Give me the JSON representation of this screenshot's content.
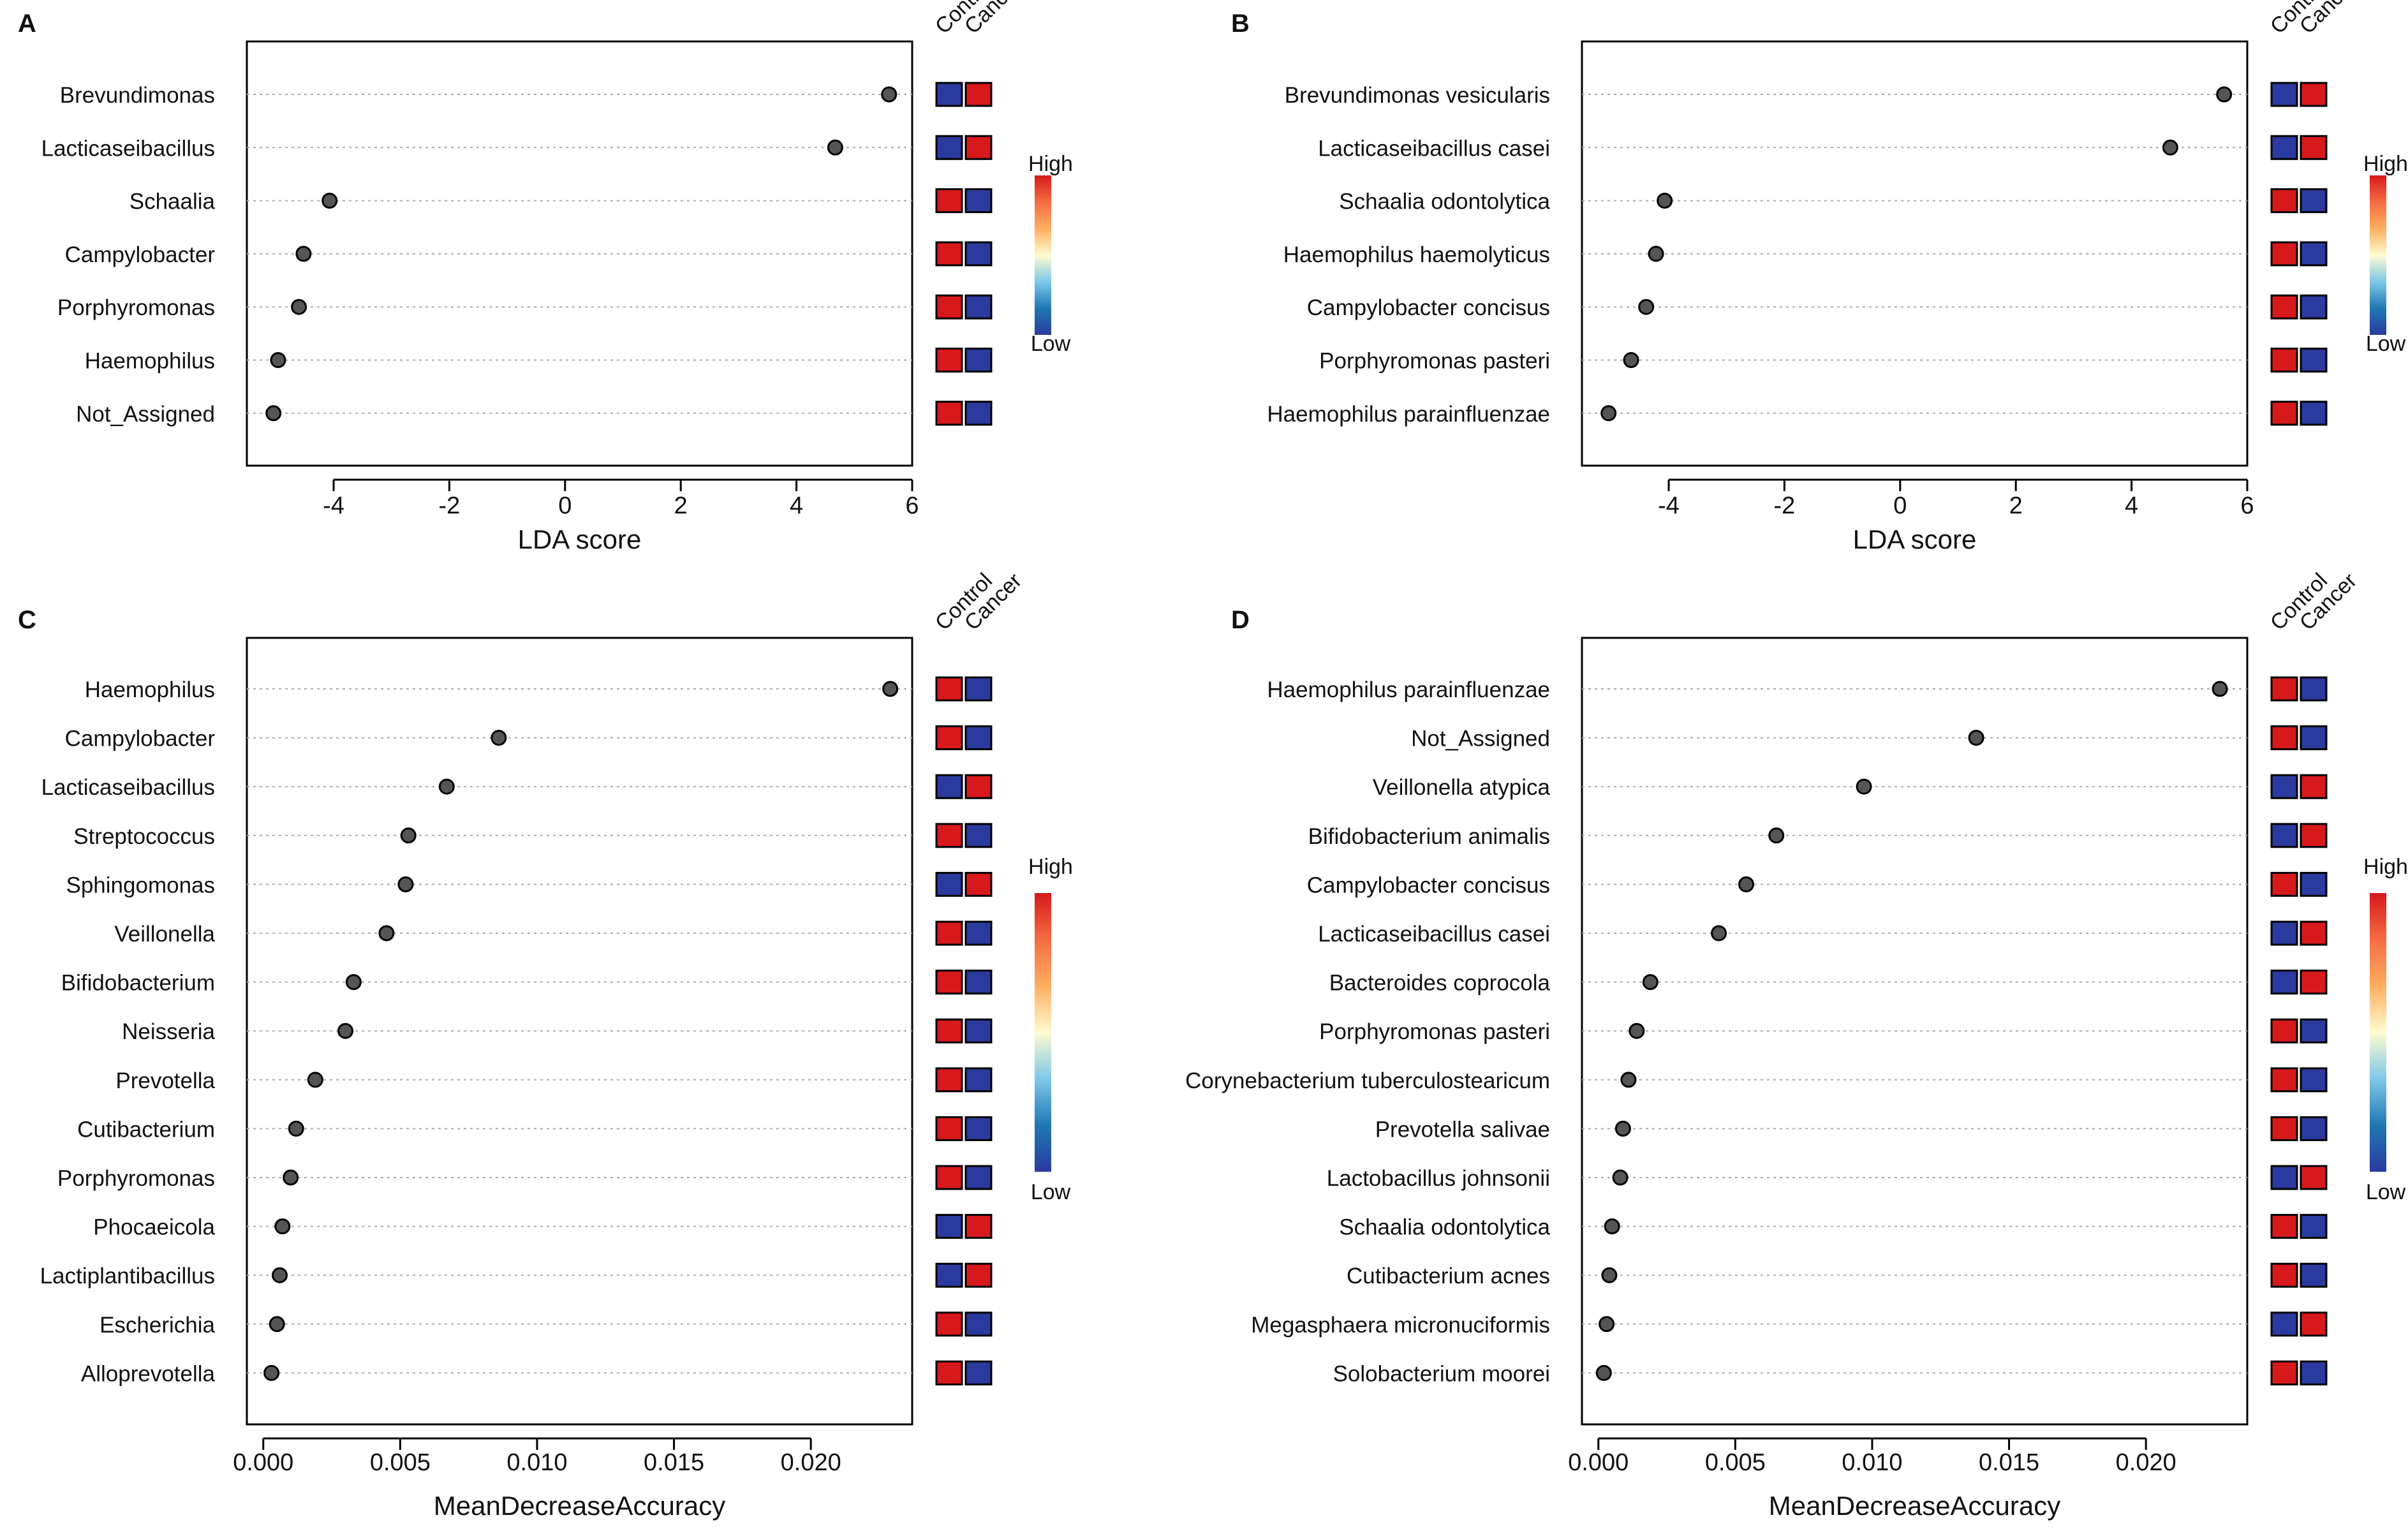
{
  "figure": {
    "legend_col_labels": [
      "Control",
      "Cancer"
    ],
    "legend_high": "High",
    "legend_low": "Low",
    "colors": {
      "high": "#d7191c",
      "low": "#2b3a9e",
      "point": "#555555",
      "box": "#000000",
      "grid": "#aaaaaa",
      "gradient": [
        "#2b3a9e",
        "#1f78b4",
        "#7fc8e8",
        "#fffbd0",
        "#fdae61",
        "#f46d43",
        "#d7191c"
      ]
    }
  },
  "chart_data": [
    {
      "panel": "A",
      "type": "scatter",
      "xlabel": "LDA score",
      "xlim": [
        -5.5,
        6
      ],
      "xticks": [
        -4,
        -2,
        0,
        2,
        4,
        6
      ],
      "xtick_labels": [
        "-4",
        "-2",
        "0",
        "2",
        "4",
        "6"
      ],
      "categories": [
        "Brevundimonas",
        "Lacticaseibacillus",
        "Schaalia",
        "Campylobacter",
        "Porphyromonas",
        "Haemophilus",
        "Not_Assigned"
      ],
      "values": [
        5.6,
        4.67,
        -4.07,
        -4.52,
        -4.6,
        -4.96,
        -5.04
      ],
      "heatmap": [
        [
          "low",
          "high"
        ],
        [
          "low",
          "high"
        ],
        [
          "high",
          "low"
        ],
        [
          "high",
          "low"
        ],
        [
          "high",
          "low"
        ],
        [
          "high",
          "low"
        ],
        [
          "high",
          "low"
        ]
      ]
    },
    {
      "panel": "B",
      "type": "scatter",
      "xlabel": "LDA score",
      "xlim": [
        -5.5,
        6
      ],
      "xticks": [
        -4,
        -2,
        0,
        2,
        4,
        6
      ],
      "xtick_labels": [
        "-4",
        "-2",
        "0",
        "2",
        "4",
        "6"
      ],
      "categories": [
        "Brevundimonas vesicularis",
        "Lacticaseibacillus casei",
        "Schaalia odontolytica",
        "Haemophilus haemolyticus",
        "Campylobacter concisus",
        "Porphyromonas pasteri",
        "Haemophilus parainfluenzae"
      ],
      "values": [
        5.6,
        4.67,
        -4.07,
        -4.22,
        -4.39,
        -4.65,
        -5.04
      ],
      "heatmap": [
        [
          "low",
          "high"
        ],
        [
          "low",
          "high"
        ],
        [
          "high",
          "low"
        ],
        [
          "high",
          "low"
        ],
        [
          "high",
          "low"
        ],
        [
          "high",
          "low"
        ],
        [
          "high",
          "low"
        ]
      ]
    },
    {
      "panel": "C",
      "type": "scatter",
      "xlabel": "MeanDecreaseAccuracy",
      "xlim": [
        -0.0006,
        0.0237
      ],
      "xticks": [
        0,
        0.005,
        0.01,
        0.015,
        0.02
      ],
      "xtick_labels": [
        "0.000",
        "0.005",
        "0.010",
        "0.015",
        "0.020"
      ],
      "categories": [
        "Haemophilus",
        "Campylobacter",
        "Lacticaseibacillus",
        "Streptococcus",
        "Sphingomonas",
        "Veillonella",
        "Bifidobacterium",
        "Neisseria",
        "Prevotella",
        "Cutibacterium",
        "Porphyromonas",
        "Phocaeicola",
        "Lactiplantibacillus",
        "Escherichia",
        "Alloprevotella"
      ],
      "values": [
        0.0229,
        0.0086,
        0.0067,
        0.0053,
        0.0052,
        0.0045,
        0.0033,
        0.003,
        0.0019,
        0.0012,
        0.001,
        0.0007,
        0.0006,
        0.0005,
        0.0003
      ],
      "heatmap": [
        [
          "high",
          "low"
        ],
        [
          "high",
          "low"
        ],
        [
          "low",
          "high"
        ],
        [
          "high",
          "low"
        ],
        [
          "low",
          "high"
        ],
        [
          "high",
          "low"
        ],
        [
          "high",
          "low"
        ],
        [
          "high",
          "low"
        ],
        [
          "high",
          "low"
        ],
        [
          "high",
          "low"
        ],
        [
          "high",
          "low"
        ],
        [
          "low",
          "high"
        ],
        [
          "low",
          "high"
        ],
        [
          "high",
          "low"
        ],
        [
          "high",
          "low"
        ]
      ]
    },
    {
      "panel": "D",
      "type": "scatter",
      "xlabel": "MeanDecreaseAccuracy",
      "xlim": [
        -0.0006,
        0.0237
      ],
      "xticks": [
        0,
        0.005,
        0.01,
        0.015,
        0.02
      ],
      "xtick_labels": [
        "0.000",
        "0.005",
        "0.010",
        "0.015",
        "0.020"
      ],
      "categories": [
        "Haemophilus parainfluenzae",
        "Not_Assigned",
        "Veillonella atypica",
        "Bifidobacterium animalis",
        "Campylobacter concisus",
        "Lacticaseibacillus casei",
        "Bacteroides coprocola",
        "Porphyromonas pasteri",
        "Corynebacterium tuberculostearicum",
        "Prevotella salivae",
        "Lactobacillus johnsonii",
        "Schaalia odontolytica",
        "Cutibacterium acnes",
        "Megasphaera micronuciformis",
        "Solobacterium moorei"
      ],
      "values": [
        0.0227,
        0.0138,
        0.0097,
        0.0065,
        0.0054,
        0.0044,
        0.0019,
        0.0014,
        0.0011,
        0.0009,
        0.0008,
        0.0005,
        0.0004,
        0.0003,
        0.0002
      ],
      "heatmap": [
        [
          "high",
          "low"
        ],
        [
          "high",
          "low"
        ],
        [
          "low",
          "high"
        ],
        [
          "low",
          "high"
        ],
        [
          "high",
          "low"
        ],
        [
          "low",
          "high"
        ],
        [
          "low",
          "high"
        ],
        [
          "high",
          "low"
        ],
        [
          "high",
          "low"
        ],
        [
          "high",
          "low"
        ],
        [
          "low",
          "high"
        ],
        [
          "high",
          "low"
        ],
        [
          "high",
          "low"
        ],
        [
          "low",
          "high"
        ],
        [
          "high",
          "low"
        ]
      ]
    }
  ]
}
